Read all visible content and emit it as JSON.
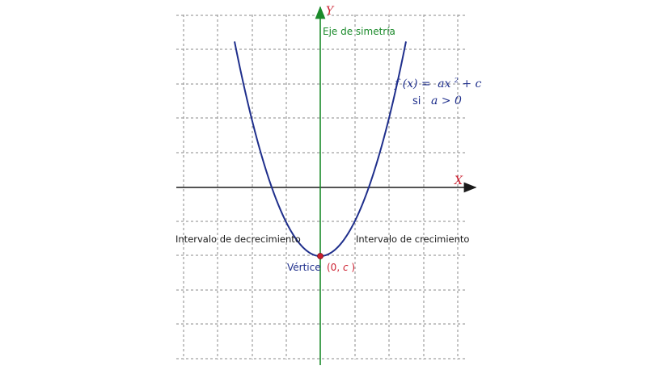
{
  "axes": {
    "x_label": "X",
    "y_label": "Y",
    "axis_color": "#1a1a1a",
    "y_axis_color": "#1a8a2a",
    "label_color": "#cc1f2f"
  },
  "symmetry_axis": {
    "label": "Eje de simetría",
    "color": "#1a8a2a"
  },
  "formula": {
    "lhs": "f (x) =",
    "rhs_a": "ax",
    "rhs_exp": "2",
    "rhs_rest": " + c",
    "condition_si": "si",
    "condition": "a > 0",
    "color": "#1f2f8c"
  },
  "intervals": {
    "decreasing": "Intervalo de decrecimiento",
    "increasing": "Intervalo de crecimiento",
    "color": "#1a1a1a"
  },
  "vertex": {
    "label": "Vértice",
    "coords_open": "(0, ",
    "coords_var": "c",
    "coords_close": ")",
    "label_color": "#1f2f8c",
    "coords_color": "#cc1f2f",
    "point_color": "#cc1f2f"
  },
  "curve": {
    "color": "#1f2f8c",
    "equation": "y = x^2 - 2",
    "x_range": [
      -2.5,
      2.5
    ]
  },
  "grid": {
    "x_min": -4,
    "x_max": 4,
    "y_min": -5,
    "y_max": 5,
    "step": 1
  }
}
